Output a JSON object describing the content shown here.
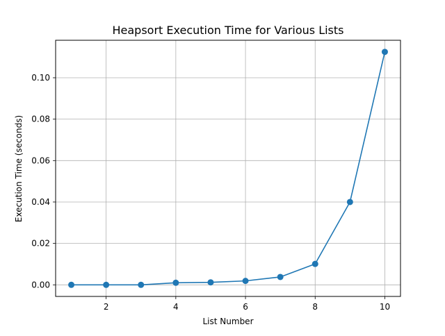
{
  "chart_data": {
    "type": "line",
    "title": "Heapsort Execution Time for Various Lists",
    "xlabel": "List Number",
    "ylabel": "Execution Time (seconds)",
    "x": [
      1,
      2,
      3,
      4,
      5,
      6,
      7,
      8,
      9,
      10
    ],
    "series": [
      {
        "values": [
          0.0,
          0.0,
          0.0,
          0.001,
          0.0012,
          0.0019,
          0.0038,
          0.0101,
          0.04,
          0.1125
        ],
        "color": "#1f77b4",
        "marker": "circle"
      }
    ],
    "xlim": [
      0.55,
      10.45
    ],
    "ylim": [
      -0.0056,
      0.1181
    ],
    "xticks": [
      2,
      4,
      6,
      8,
      10
    ],
    "xtick_labels": [
      "2",
      "4",
      "6",
      "8",
      "10"
    ],
    "yticks": [
      0.0,
      0.02,
      0.04,
      0.06,
      0.08,
      0.1
    ],
    "ytick_labels": [
      "0.00",
      "0.02",
      "0.04",
      "0.06",
      "0.08",
      "0.10"
    ],
    "grid": true,
    "legend": "none"
  }
}
